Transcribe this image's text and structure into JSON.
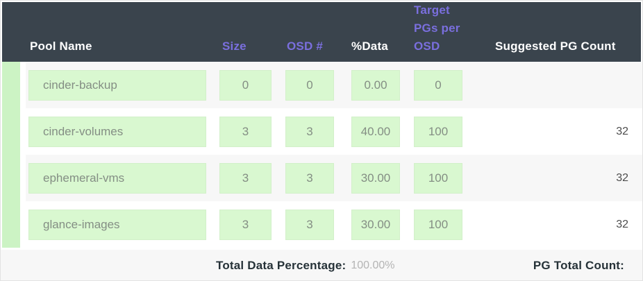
{
  "header": {
    "columns": {
      "pool_name": "Pool Name",
      "size": "Size",
      "osd": "OSD #",
      "data_pct": "%Data",
      "target_pgs": "Target PGs per OSD",
      "suggested": "Suggested PG Count"
    }
  },
  "rows": [
    {
      "name": "cinder-backup",
      "size": "0",
      "osd": "0",
      "data_pct": "0.00",
      "target_pgs": "0",
      "suggested": ""
    },
    {
      "name": "cinder-volumes",
      "size": "3",
      "osd": "3",
      "data_pct": "40.00",
      "target_pgs": "100",
      "suggested": "32"
    },
    {
      "name": "ephemeral-vms",
      "size": "3",
      "osd": "3",
      "data_pct": "30.00",
      "target_pgs": "100",
      "suggested": "32"
    },
    {
      "name": "glance-images",
      "size": "3",
      "osd": "3",
      "data_pct": "30.00",
      "target_pgs": "100",
      "suggested": "32"
    }
  ],
  "footer": {
    "total_data_label": "Total Data Percentage:",
    "total_data_value": "100.00%",
    "pg_total_label": "PG Total Count:",
    "pg_total_value": ""
  },
  "colors": {
    "header_bg": "#3a444d",
    "header_accent_text": "#7a6fde",
    "header_text": "#ffffff",
    "input_bg": "#d9f8d0",
    "left_stripe": "#ccf3c4",
    "row_alt_bg": "#f7f7f7",
    "footer_label_text": "#263238"
  }
}
